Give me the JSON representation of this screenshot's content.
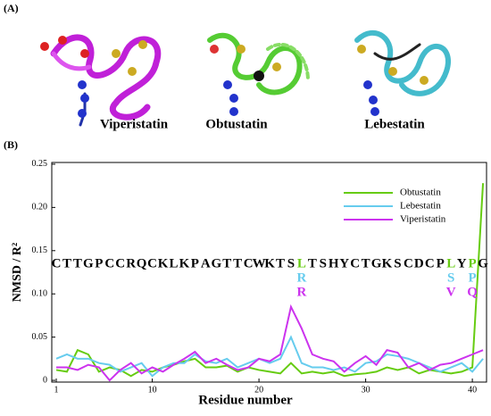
{
  "panel_labels": {
    "a": "(A)",
    "b": "(B)"
  },
  "structures": [
    "Viperistatin",
    "Obtustatin",
    "Lebestatin"
  ],
  "chart_data": {
    "type": "line",
    "xlabel": "Residue number",
    "ylabel": "NMSD / R²",
    "x": [
      1,
      2,
      3,
      4,
      5,
      6,
      7,
      8,
      9,
      10,
      11,
      12,
      13,
      14,
      15,
      16,
      17,
      18,
      19,
      20,
      21,
      22,
      23,
      24,
      25,
      26,
      27,
      28,
      29,
      30,
      31,
      32,
      33,
      34,
      35,
      36,
      37,
      38,
      39,
      40,
      41
    ],
    "xlim": [
      0.58,
      41.33
    ],
    "xticks": [
      1,
      10,
      20,
      30,
      40
    ],
    "ylim": [
      -0.002,
      0.252
    ],
    "yticks": [
      0,
      0.05,
      {
        "value": 0.1,
        "label": "0.10"
      },
      0.15,
      {
        "value": 0.2,
        "label": "0.20"
      },
      0.25
    ],
    "legend": "upper right",
    "series": [
      {
        "name": "Obtustatin",
        "color": "#66cc11",
        "values": [
          0.012,
          0.01,
          0.035,
          0.03,
          0.01,
          0.015,
          0.012,
          0.005,
          0.012,
          0.01,
          0.015,
          0.018,
          0.022,
          0.025,
          0.015,
          0.015,
          0.017,
          0.01,
          0.015,
          0.012,
          0.01,
          0.008,
          0.02,
          0.008,
          0.01,
          0.008,
          0.01,
          0.005,
          0.007,
          0.008,
          0.01,
          0.015,
          0.012,
          0.015,
          0.008,
          0.012,
          0.01,
          0.008,
          0.01,
          0.015,
          0.228
        ]
      },
      {
        "name": "Lebestatin",
        "color": "#66ccee",
        "values": [
          0.025,
          0.03,
          0.025,
          0.025,
          0.02,
          0.018,
          0.01,
          0.015,
          0.02,
          0.005,
          0.015,
          0.02,
          0.02,
          0.03,
          0.022,
          0.02,
          0.025,
          0.015,
          0.02,
          0.025,
          0.02,
          0.025,
          0.05,
          0.02,
          0.015,
          0.015,
          0.012,
          0.015,
          0.01,
          0.02,
          0.022,
          0.03,
          0.028,
          0.025,
          0.02,
          0.015,
          0.01,
          0.015,
          0.02,
          0.01,
          0.025
        ]
      },
      {
        "name": "Viperistatin",
        "color": "#cc33ee",
        "values": [
          0.015,
          0.015,
          0.012,
          0.018,
          0.015,
          0.0,
          0.012,
          0.02,
          0.008,
          0.015,
          0.01,
          0.018,
          0.025,
          0.033,
          0.02,
          0.025,
          0.018,
          0.012,
          0.015,
          0.025,
          0.022,
          0.03,
          0.085,
          0.06,
          0.03,
          0.025,
          0.022,
          0.01,
          0.02,
          0.028,
          0.018,
          0.035,
          0.032,
          0.015,
          0.02,
          0.012,
          0.018,
          0.02,
          0.025,
          0.03,
          0.035
        ]
      }
    ],
    "sequence": [
      "C",
      "T",
      "T",
      "G",
      "P",
      "C",
      "C",
      "R",
      "Q",
      "C",
      "K",
      "L",
      "K",
      "P",
      "A",
      "G",
      "T",
      "T",
      "C",
      "W",
      "K",
      "T",
      "S",
      "L",
      "T",
      "S",
      "H",
      "Y",
      "C",
      "T",
      "G",
      "K",
      "S",
      "C",
      "D",
      "C",
      "P",
      "L",
      "Y",
      "P",
      "G"
    ],
    "lebestatin_residues": [
      null,
      null,
      null,
      null,
      null,
      null,
      null,
      null,
      null,
      null,
      null,
      null,
      null,
      null,
      null,
      null,
      null,
      null,
      null,
      null,
      null,
      null,
      null,
      "R",
      null,
      null,
      null,
      null,
      null,
      null,
      null,
      null,
      null,
      null,
      null,
      null,
      null,
      "S",
      null,
      "P",
      null
    ],
    "viperistatin_residues": [
      null,
      null,
      null,
      null,
      null,
      null,
      null,
      null,
      null,
      null,
      null,
      null,
      null,
      null,
      null,
      null,
      null,
      null,
      null,
      null,
      null,
      null,
      null,
      "R",
      null,
      null,
      null,
      null,
      null,
      null,
      null,
      null,
      null,
      null,
      null,
      null,
      null,
      "V",
      null,
      "Q",
      null
    ]
  }
}
